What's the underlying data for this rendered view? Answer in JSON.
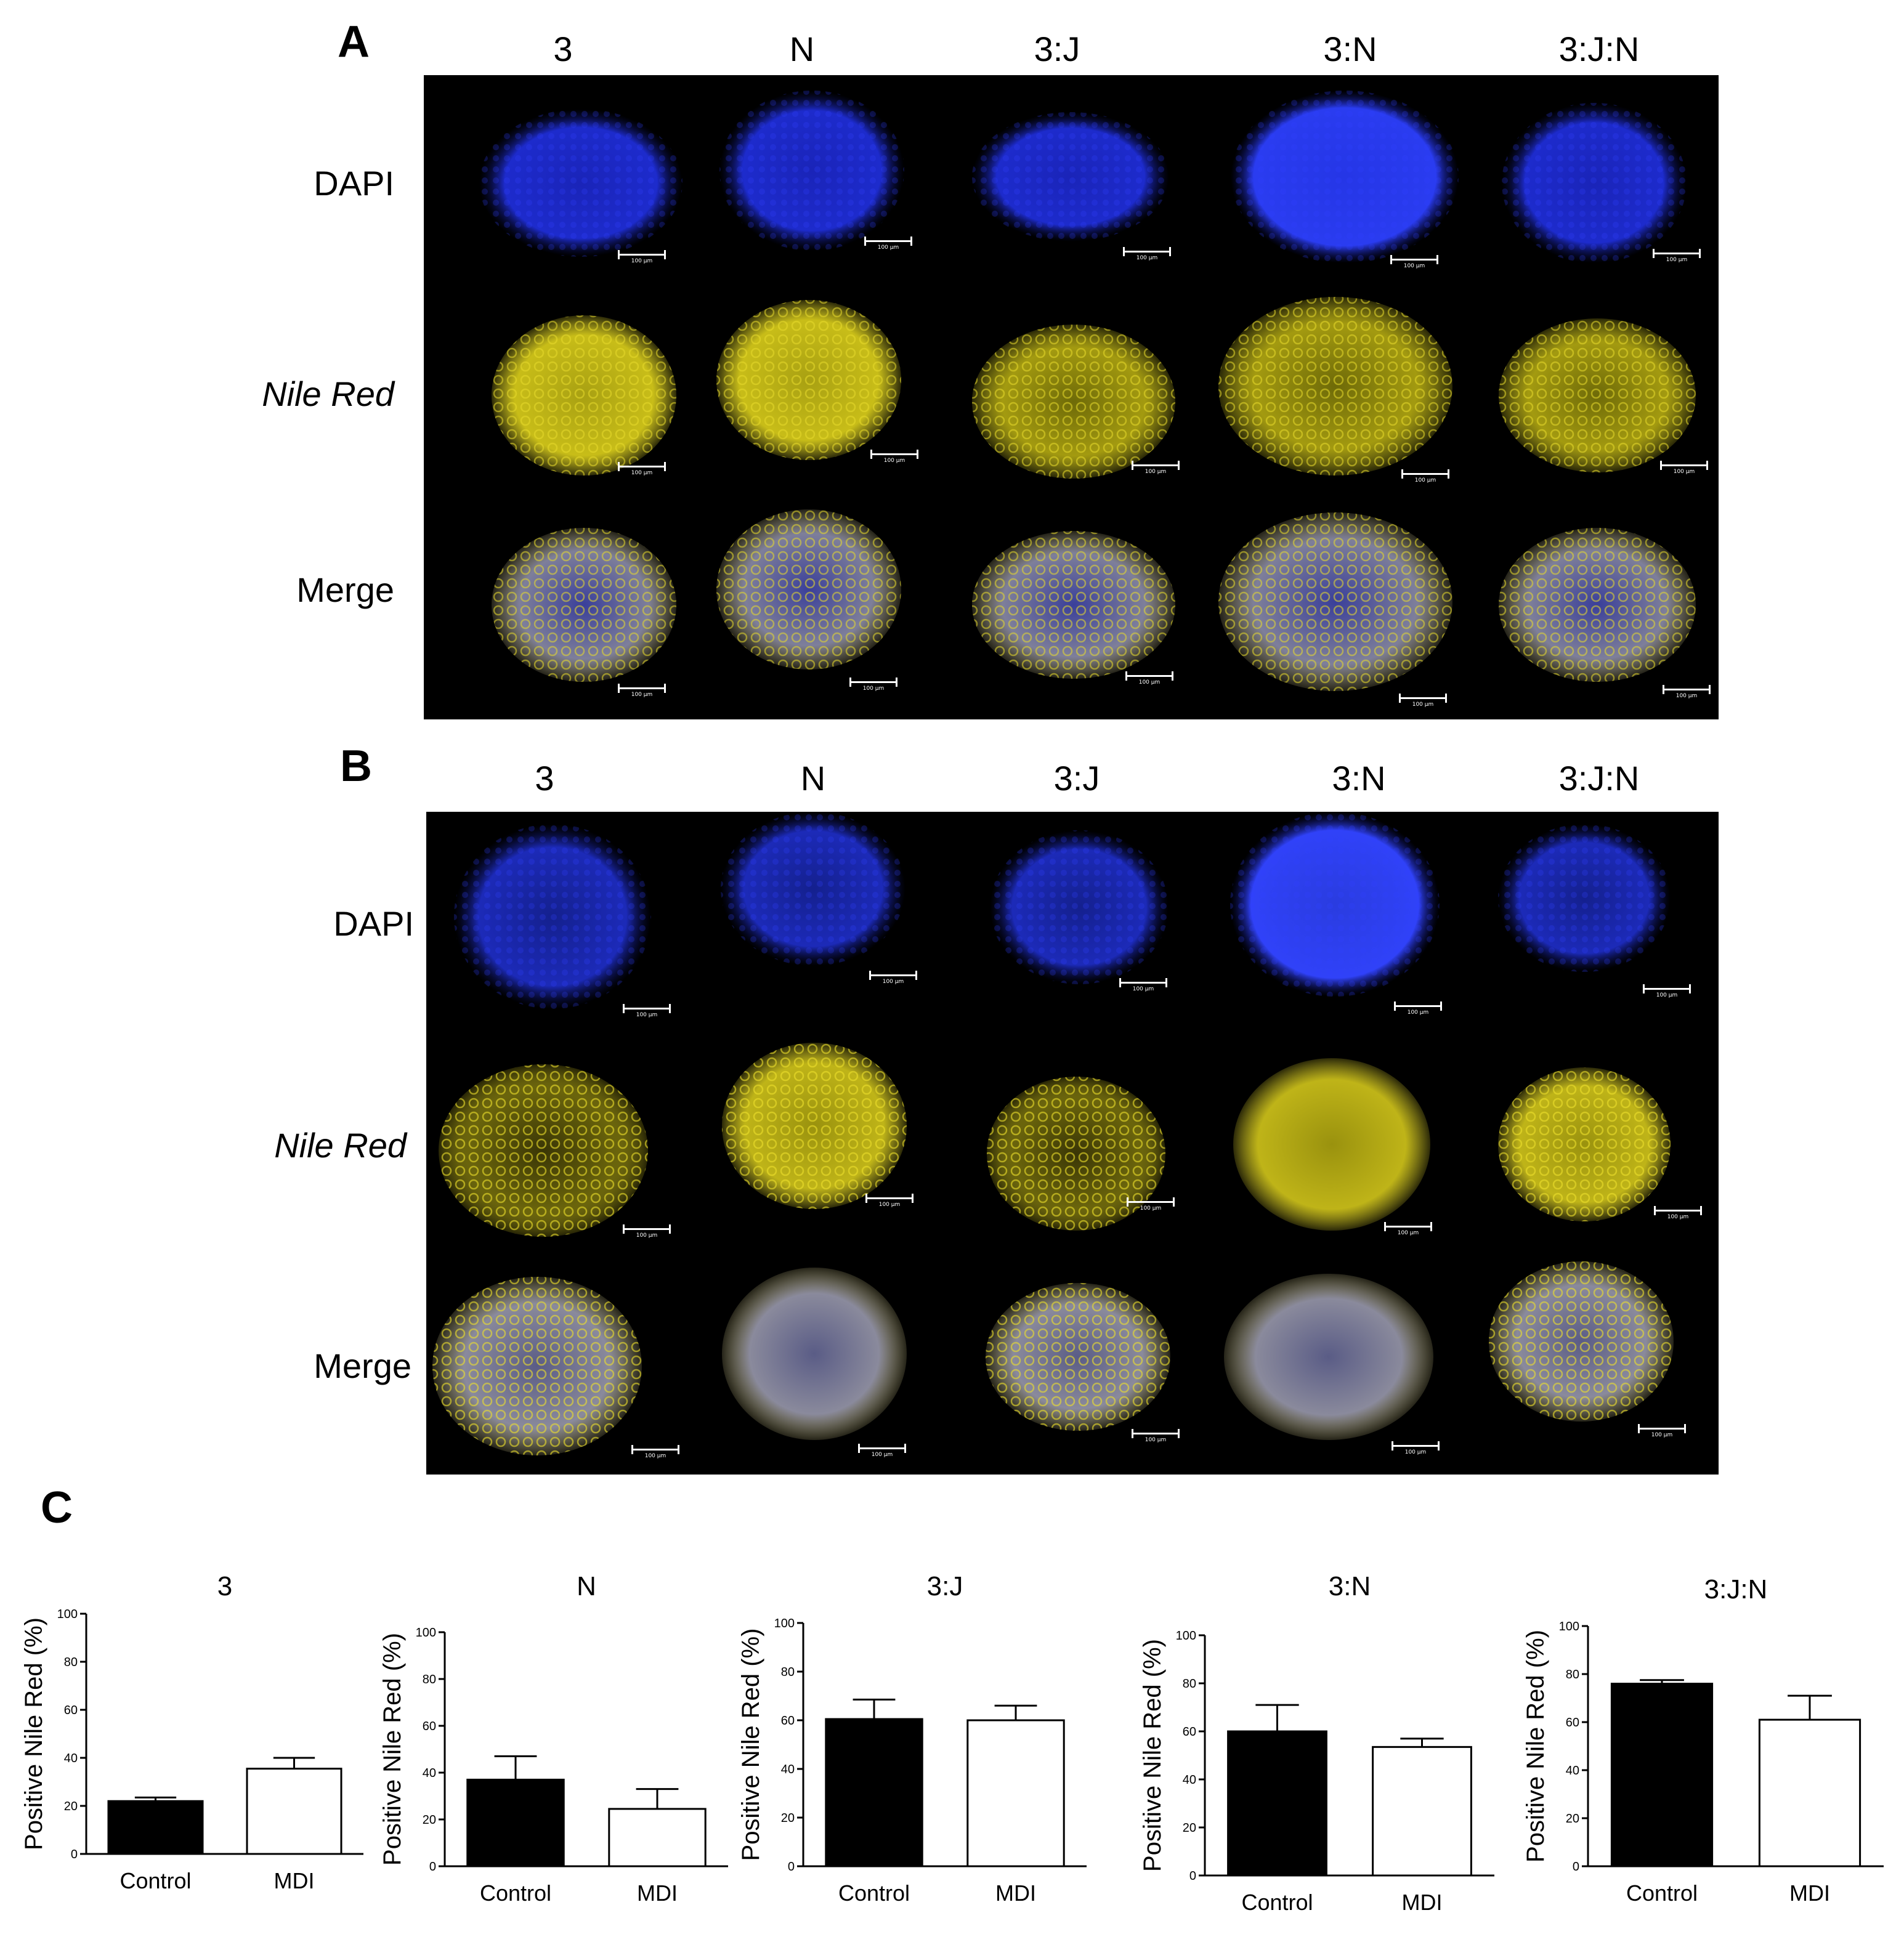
{
  "panels": {
    "A": {
      "letter": "A",
      "columns": [
        "3",
        "N",
        "3:J",
        "3:N",
        "3:J:N"
      ],
      "rows": [
        "DAPI",
        "Nile Red",
        "Merge"
      ]
    },
    "B": {
      "letter": "B",
      "columns": [
        "3",
        "N",
        "3:J",
        "3:N",
        "3:J:N"
      ],
      "rows": [
        "DAPI",
        "Nile Red",
        "Merge"
      ]
    },
    "C": {
      "letter": "C"
    }
  },
  "scale_bar_label": "100 µm",
  "colors": {
    "dapi": "#1f2fd8",
    "nile_red": "#d8cc1a",
    "merge_gray": "#8a8aa8",
    "background": "#000000"
  },
  "chart_data": [
    {
      "type": "bar",
      "title": "3",
      "ylabel": "Positive Nile Red (%)",
      "categories": [
        "Control",
        "MDI"
      ],
      "values": [
        22,
        35.5
      ],
      "errors": [
        1.5,
        4.5
      ],
      "fills": [
        "#000000",
        "#ffffff"
      ],
      "ylim": [
        0,
        100
      ],
      "yticks": [
        0,
        20,
        40,
        60,
        80,
        100
      ]
    },
    {
      "type": "bar",
      "title": "N",
      "ylabel": "Positive Nile Red (%)",
      "categories": [
        "Control",
        "MDI"
      ],
      "values": [
        37,
        24.5
      ],
      "errors": [
        10,
        8.5
      ],
      "fills": [
        "#000000",
        "#ffffff"
      ],
      "ylim": [
        0,
        100
      ],
      "yticks": [
        0,
        20,
        40,
        60,
        80,
        100
      ]
    },
    {
      "type": "bar",
      "title": "3:J",
      "ylabel": "Positive Nile Red (%)",
      "categories": [
        "Control",
        "MDI"
      ],
      "values": [
        60.5,
        60
      ],
      "errors": [
        8,
        6
      ],
      "fills": [
        "#000000",
        "#ffffff"
      ],
      "ylim": [
        0,
        100
      ],
      "yticks": [
        0,
        20,
        40,
        60,
        80,
        100
      ]
    },
    {
      "type": "bar",
      "title": "3:N",
      "ylabel": "Positive Nile Red (%)",
      "categories": [
        "Control",
        "MDI"
      ],
      "values": [
        60,
        53.5
      ],
      "errors": [
        11,
        3.5
      ],
      "fills": [
        "#000000",
        "#ffffff"
      ],
      "ylim": [
        0,
        100
      ],
      "yticks": [
        0,
        20,
        40,
        60,
        80,
        100
      ]
    },
    {
      "type": "bar",
      "title": "3:J:N",
      "ylabel": "Positive Nile Red (%)",
      "categories": [
        "Control",
        "MDI"
      ],
      "values": [
        76,
        61
      ],
      "errors": [
        1.5,
        10
      ],
      "fills": [
        "#000000",
        "#ffffff"
      ],
      "ylim": [
        0,
        100
      ],
      "yticks": [
        0,
        20,
        40,
        60,
        80,
        100
      ]
    }
  ]
}
